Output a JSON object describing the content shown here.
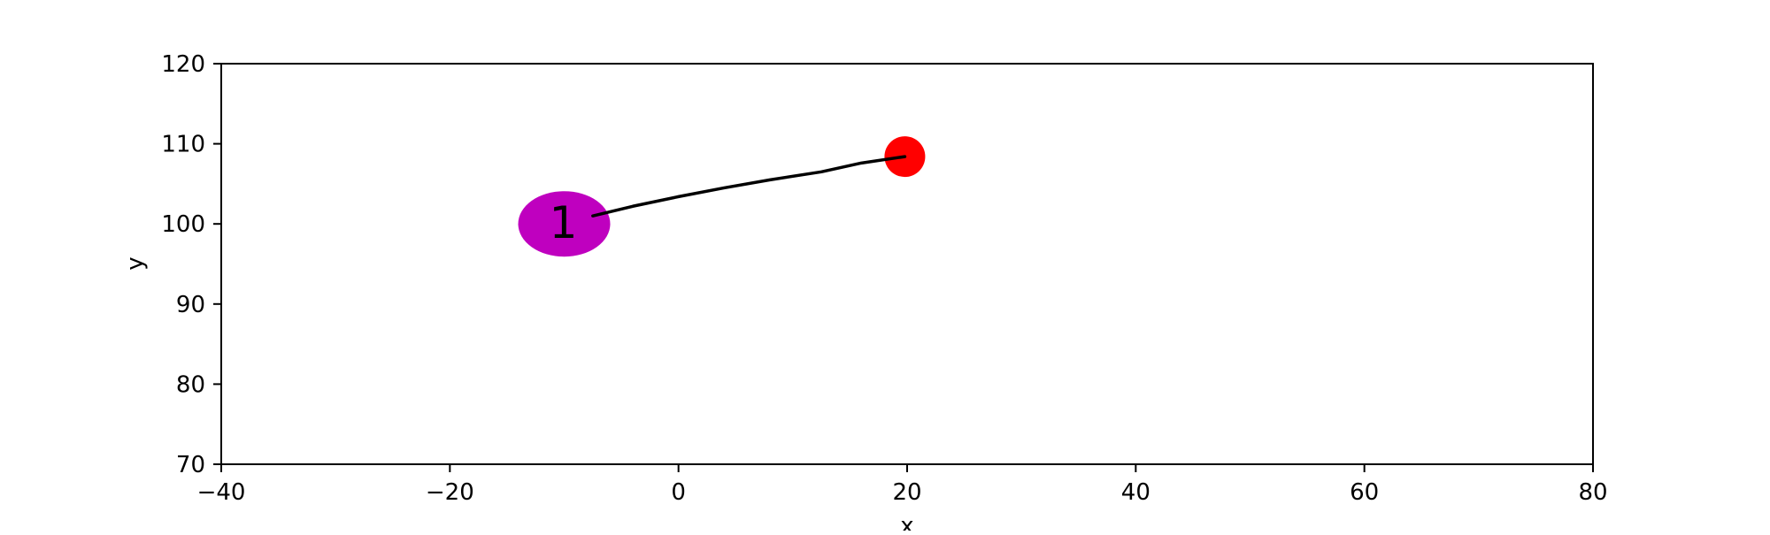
{
  "chart_data": {
    "type": "scatter",
    "title": "",
    "xlabel": "x",
    "ylabel": "y",
    "xlim": [
      -40,
      80
    ],
    "ylim": [
      70,
      120
    ],
    "xticks": [
      -40,
      -20,
      0,
      20,
      40,
      60,
      80
    ],
    "xtick_labels": [
      "−40",
      "−20",
      "0",
      "20",
      "40",
      "60",
      "80"
    ],
    "yticks": [
      70,
      80,
      90,
      100,
      110,
      120
    ],
    "ytick_labels": [
      "70",
      "80",
      "90",
      "100",
      "110",
      "120"
    ],
    "grid": false,
    "trajectory": {
      "color": "#000000",
      "points": [
        [
          -7.5,
          101.0
        ],
        [
          -4.0,
          102.2
        ],
        [
          0.0,
          103.4
        ],
        [
          4.0,
          104.5
        ],
        [
          8.0,
          105.5
        ],
        [
          12.5,
          106.5
        ],
        [
          16.0,
          107.6
        ],
        [
          19.8,
          108.4
        ]
      ]
    },
    "markers": [
      {
        "kind": "ellipse",
        "x": -10,
        "y": 100,
        "label": "1",
        "color": "#bf00bf"
      },
      {
        "kind": "circle",
        "x": 19.8,
        "y": 108.4,
        "label": "",
        "color": "#ff0000"
      }
    ]
  }
}
